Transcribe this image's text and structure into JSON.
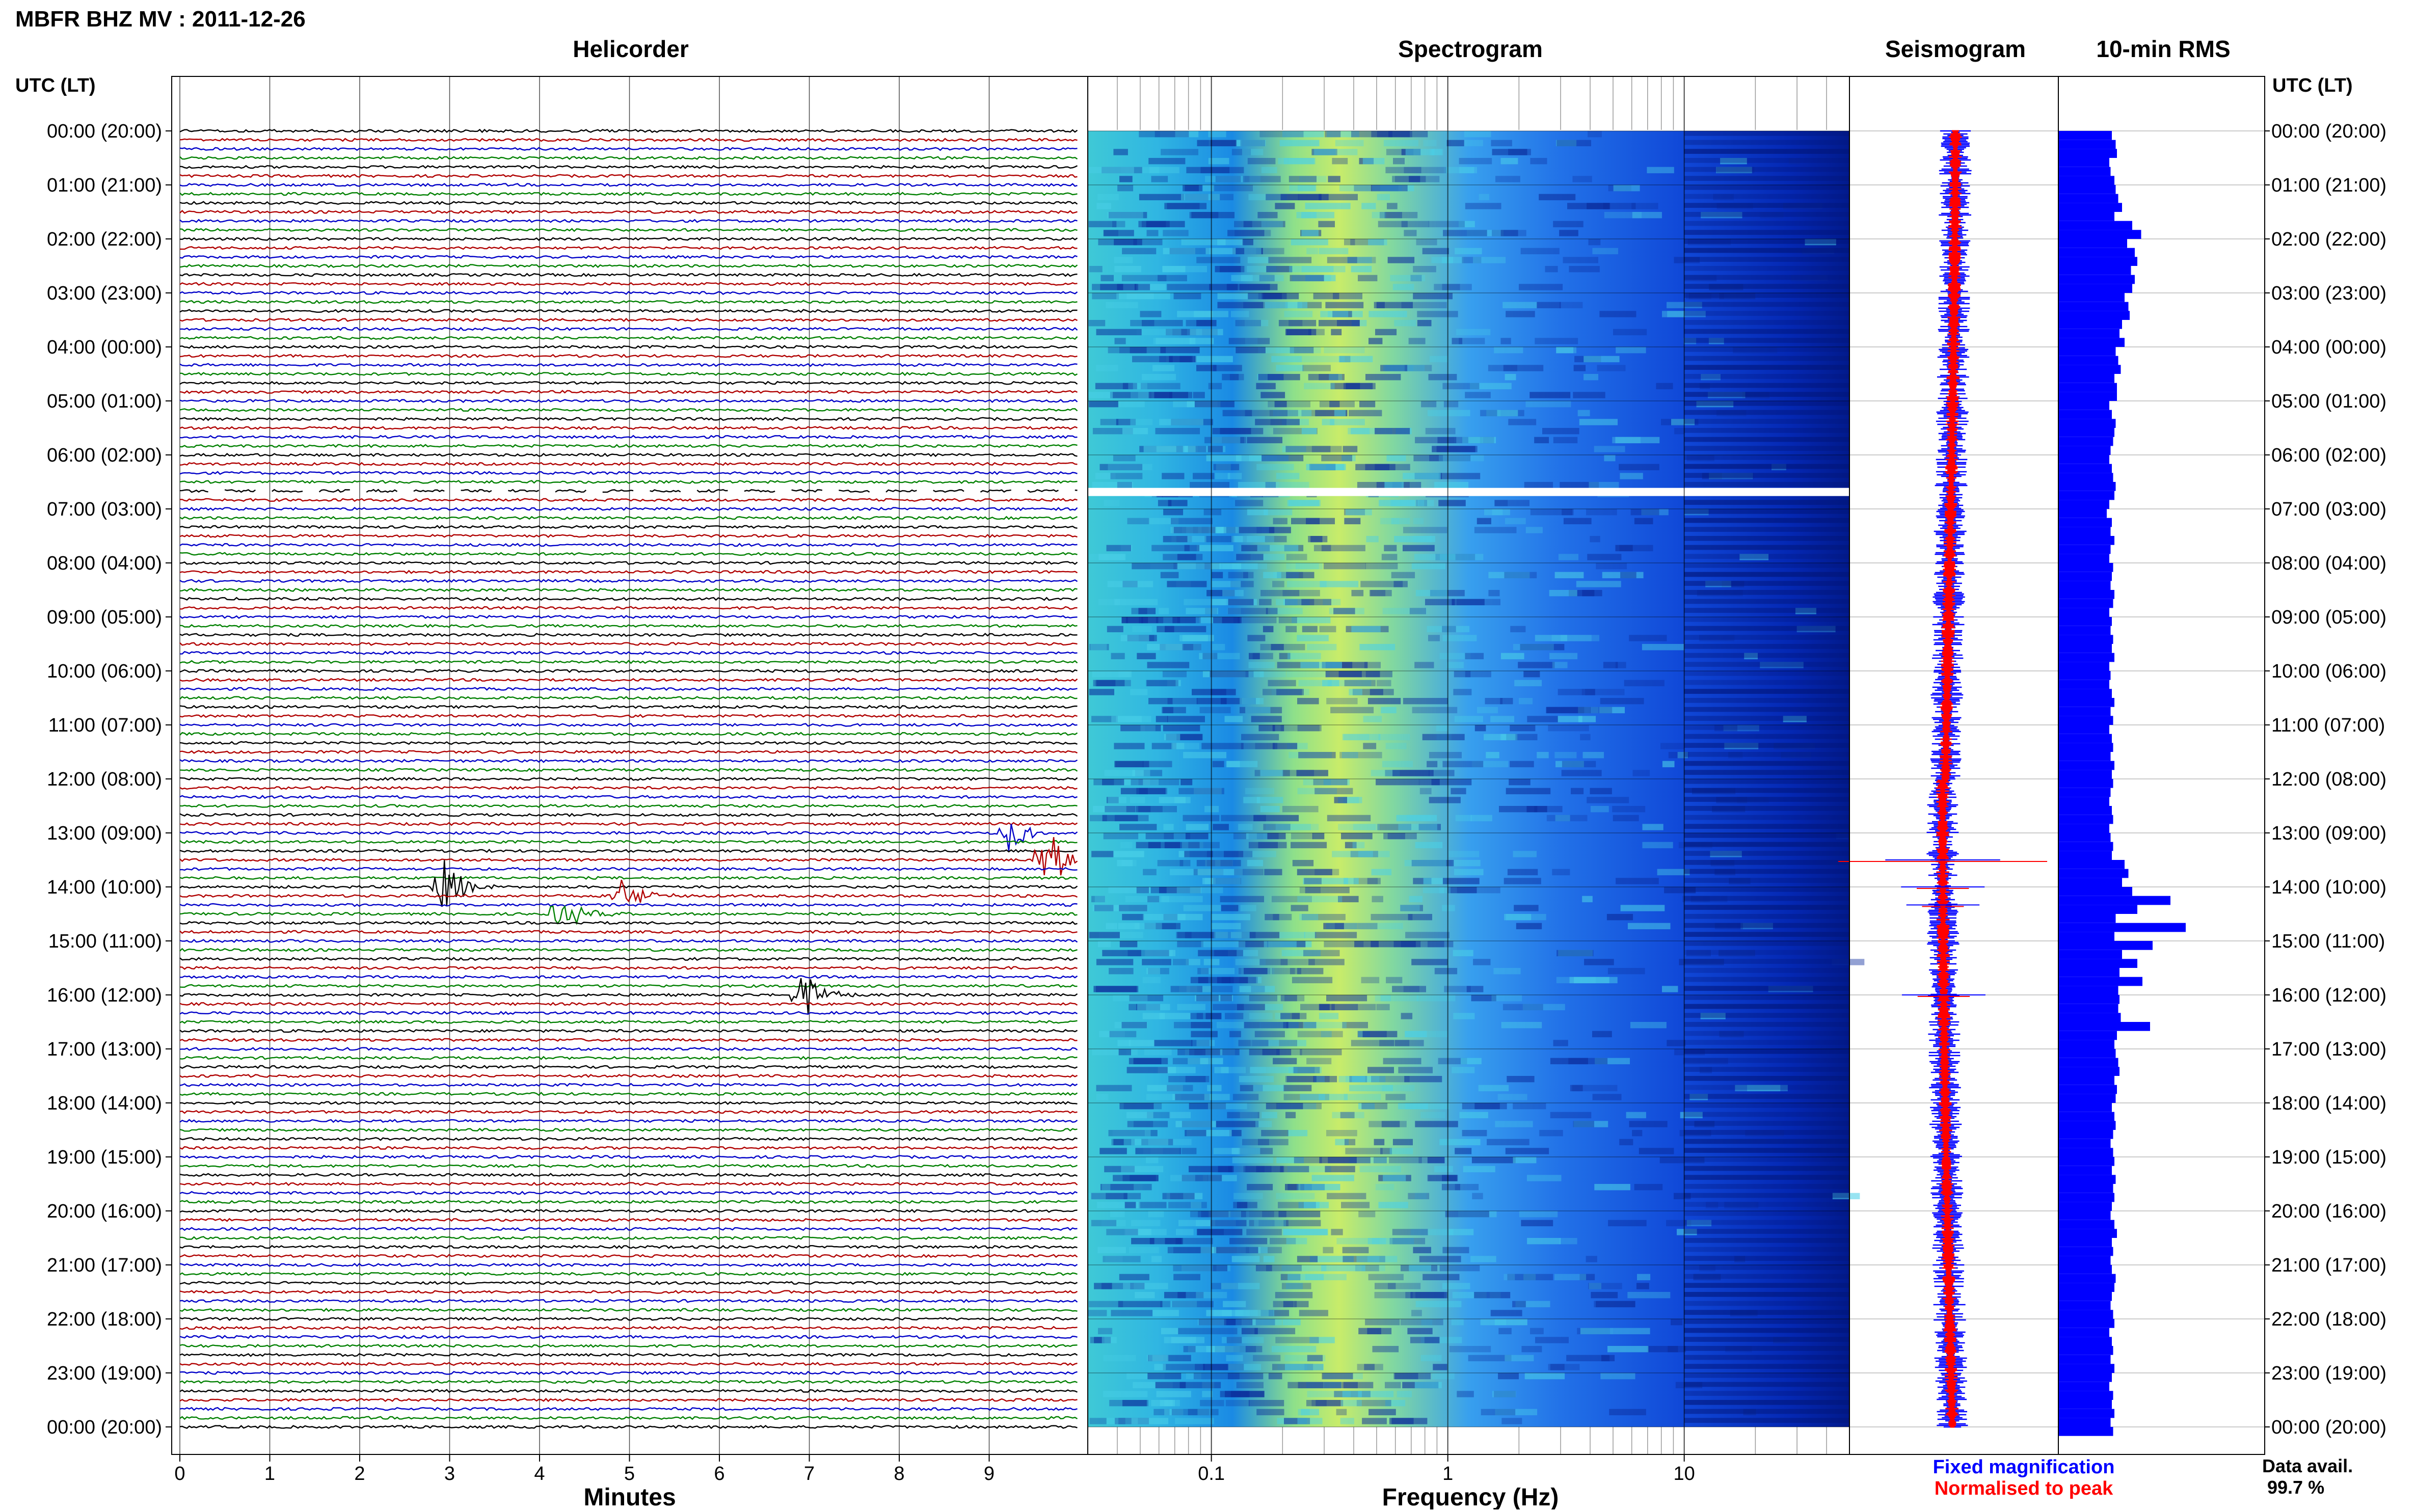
{
  "title": "MBFR BHZ MV : 2011-12-26",
  "panels": {
    "helicorder": "Helicorder",
    "spectrogram": "Spectrogram",
    "seismogram": "Seismogram",
    "rms": "10-min RMS"
  },
  "axis_labels": {
    "time_left": "UTC (LT)",
    "time_right": "UTC (LT)",
    "minutes": "Minutes",
    "frequency": "Frequency (Hz)"
  },
  "legend": {
    "fixed": "Fixed magnification",
    "normalised": "Normalised to peak",
    "fixed_color": "#0000ff",
    "normalised_color": "#ff0000"
  },
  "data_avail": {
    "label": "Data avail.",
    "value": "99.7 %"
  },
  "time_ticks": [
    "00:00 (20:00)",
    "01:00 (21:00)",
    "02:00 (22:00)",
    "03:00 (23:00)",
    "04:00 (00:00)",
    "05:00 (01:00)",
    "06:00 (02:00)",
    "07:00 (03:00)",
    "08:00 (04:00)",
    "09:00 (05:00)",
    "10:00 (06:00)",
    "11:00 (07:00)",
    "12:00 (08:00)",
    "13:00 (09:00)",
    "14:00 (10:00)",
    "15:00 (11:00)",
    "16:00 (12:00)",
    "17:00 (13:00)",
    "18:00 (14:00)",
    "19:00 (15:00)",
    "20:00 (16:00)",
    "21:00 (17:00)",
    "22:00 (18:00)",
    "23:00 (19:00)",
    "00:00 (20:00)"
  ],
  "minute_ticks": [
    "0",
    "1",
    "2",
    "3",
    "4",
    "5",
    "6",
    "7",
    "8",
    "9"
  ],
  "freq_ticks": [
    "0.1",
    "1",
    "10"
  ],
  "colors": {
    "trace_cycle": [
      "#000000",
      "#b00000",
      "#0000c8",
      "#008000"
    ],
    "rms_bar": "#0000ff",
    "gap": "#ffffff"
  },
  "chart_data": [
    {
      "type": "line",
      "name": "Helicorder",
      "x_unit": "minutes",
      "xlim": [
        0,
        10
      ],
      "rows_per_hour": 6,
      "hours": 24,
      "events": [
        {
          "time": "13:30",
          "minute": 9.6,
          "amplitude": 1.0
        },
        {
          "time": "13:00",
          "minute": 9.2,
          "amplitude": 0.45
        },
        {
          "time": "14:00",
          "minute": 2.9,
          "amplitude": 0.75
        },
        {
          "time": "14:30",
          "minute": 4.2,
          "amplitude": 0.55
        },
        {
          "time": "14:10",
          "minute": 4.9,
          "amplitude": 0.5
        },
        {
          "time": "16:00",
          "minute": 6.9,
          "amplitude": 0.65
        }
      ],
      "gap": {
        "time": "06:40",
        "fraction_missing": 0.4
      }
    },
    {
      "type": "heatmap",
      "name": "Spectrogram",
      "x_scale": "log",
      "xlim_hz": [
        0.03,
        50
      ],
      "peak_band_hz": [
        0.2,
        0.5
      ],
      "gap_time": "06:40"
    },
    {
      "type": "line",
      "name": "Seismogram",
      "spikes": [
        {
          "time": "13:30",
          "fixed": 0.55,
          "normalised": 1.0
        },
        {
          "time": "14:00",
          "fixed": 0.4,
          "normalised": 0.25
        },
        {
          "time": "14:20",
          "fixed": 0.35,
          "normalised": 0.2
        },
        {
          "time": "16:00",
          "fixed": 0.4,
          "normalised": 0.25
        }
      ]
    },
    {
      "type": "bar",
      "name": "10-min RMS",
      "orientation": "horizontal",
      "bin_minutes": 10,
      "values": [
        0.42,
        0.45,
        0.46,
        0.4,
        0.41,
        0.44,
        0.45,
        0.47,
        0.5,
        0.44,
        0.58,
        0.65,
        0.54,
        0.6,
        0.62,
        0.57,
        0.6,
        0.58,
        0.52,
        0.55,
        0.56,
        0.5,
        0.48,
        0.52,
        0.45,
        0.47,
        0.49,
        0.44,
        0.46,
        0.46,
        0.4,
        0.42,
        0.45,
        0.44,
        0.43,
        0.41,
        0.4,
        0.42,
        0.43,
        0.45,
        0.44,
        0.4,
        0.38,
        0.42,
        0.41,
        0.44,
        0.41,
        0.4,
        0.43,
        0.42,
        0.41,
        0.44,
        0.43,
        0.4,
        0.42,
        0.41,
        0.43,
        0.42,
        0.44,
        0.4,
        0.41,
        0.4,
        0.42,
        0.44,
        0.41,
        0.43,
        0.4,
        0.42,
        0.43,
        0.41,
        0.44,
        0.42,
        0.43,
        0.41,
        0.4,
        0.42,
        0.43,
        0.4,
        0.41,
        0.43,
        0.42,
        0.52,
        0.55,
        0.5,
        0.58,
        0.88,
        0.62,
        0.45,
        1.0,
        0.44,
        0.74,
        0.5,
        0.62,
        0.48,
        0.66,
        0.47,
        0.48,
        0.47,
        0.49,
        0.72,
        0.46,
        0.44,
        0.45,
        0.47,
        0.48,
        0.44,
        0.46,
        0.45,
        0.42,
        0.44,
        0.45,
        0.43,
        0.41,
        0.43,
        0.44,
        0.42,
        0.45,
        0.43,
        0.44,
        0.42,
        0.41,
        0.44,
        0.46,
        0.42,
        0.43,
        0.41,
        0.42,
        0.45,
        0.44,
        0.42,
        0.41,
        0.43,
        0.44,
        0.4,
        0.42,
        0.43,
        0.41,
        0.44,
        0.42,
        0.4,
        0.43,
        0.42,
        0.44,
        0.41,
        0.43
      ]
    }
  ]
}
